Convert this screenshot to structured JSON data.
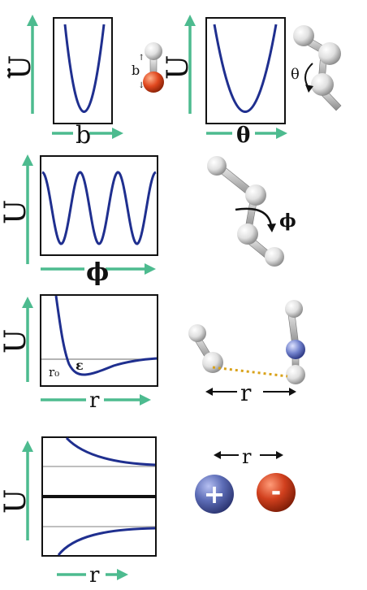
{
  "colors": {
    "arrow": "#4dbb8f",
    "curve": "#1f2f8f",
    "frame": "#111111",
    "oxygen": "#d8401c",
    "nitrogen": "#6f7fc9",
    "atom": "#e4e4e4",
    "dotted": "#d9a21a",
    "plus_ion": "#5c6cb6",
    "minus_ion": "#d1401e"
  },
  "panels": [
    {
      "id": "bond-stretch",
      "y_label": "U",
      "x_label": "b",
      "mol_label": "b",
      "curve": "parabola"
    },
    {
      "id": "angle-bend",
      "y_label": "U",
      "x_label": "θ",
      "mol_label": "θ",
      "curve": "parabola"
    },
    {
      "id": "torsion",
      "y_label": "U",
      "x_label": "ϕ",
      "mol_label": "ϕ",
      "curve": "cosine"
    },
    {
      "id": "van-der-waals",
      "y_label": "U",
      "x_label": "r",
      "mol_label": "r",
      "annotations": [
        "r₀",
        "ε"
      ],
      "curve": "lennard-jones"
    },
    {
      "id": "electrostatic",
      "y_label": "U",
      "x_label": "r",
      "mol_label": "r",
      "curve": "coulomb"
    }
  ],
  "ions": {
    "plus": "+",
    "minus": "-"
  },
  "stray_mark": ":"
}
